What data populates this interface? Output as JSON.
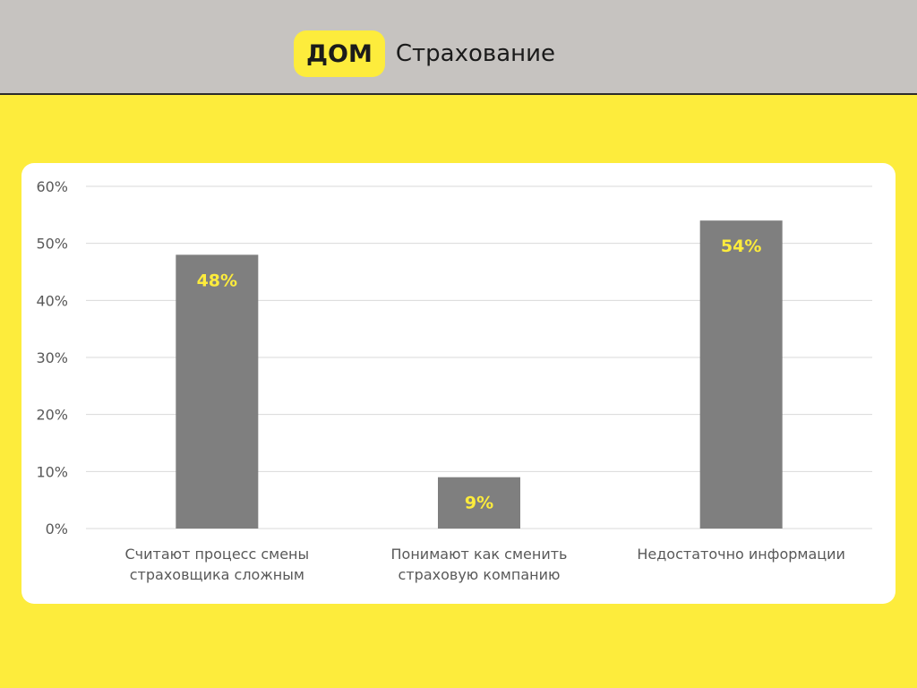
{
  "colors": {
    "page_background": "#fdec3c",
    "header_background": "#c6c3c0",
    "logo_background": "#fdec3c",
    "bar": "#7f7f7f",
    "data_label": "#fdec3c",
    "gridline": "#d9d9d9",
    "tick_text": "#595959"
  },
  "header": {
    "logo_mark": "ДОМ",
    "logo_text": "Страхование"
  },
  "chart_data": {
    "type": "bar",
    "categories": [
      "Считают процесс смены\nстраховщика сложным",
      "Понимают как сменить\nстраховую компанию",
      "Недостаточно информации"
    ],
    "values": [
      48,
      9,
      54
    ],
    "data_labels": [
      "48%",
      "9%",
      "54%"
    ],
    "ylim": [
      0,
      60
    ],
    "yticks": [
      0,
      10,
      20,
      30,
      40,
      50,
      60
    ],
    "ytick_labels": [
      "0%",
      "10%",
      "20%",
      "30%",
      "40%",
      "50%",
      "60%"
    ],
    "grid": true,
    "legend": "none"
  }
}
